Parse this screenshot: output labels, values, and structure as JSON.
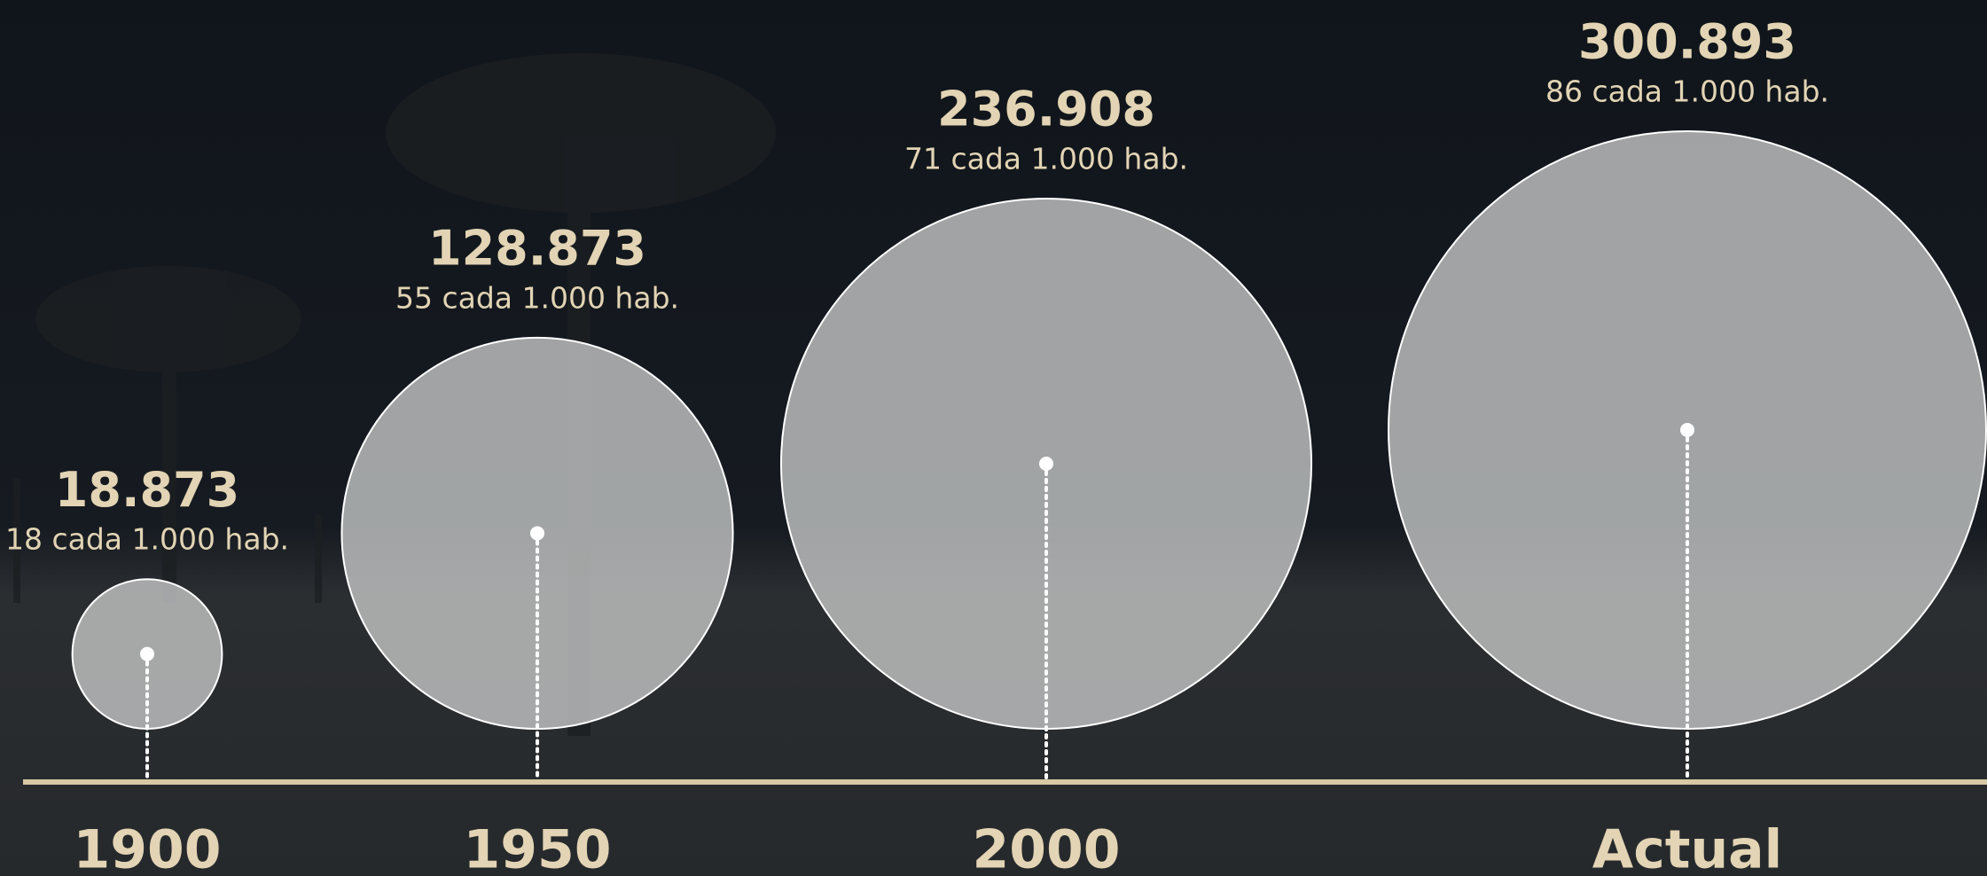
{
  "chart_data": {
    "type": "bubble",
    "categories": [
      "1900",
      "1950",
      "2000",
      "Actual"
    ],
    "values": [
      18873,
      128873,
      236908,
      300893
    ],
    "value_labels": [
      "18.873",
      "128.873",
      "236.908",
      "300.893"
    ],
    "rate_labels": [
      "18 cada 1.000 hab.",
      "55 cada 1.000 hab.",
      "71 cada 1.000 hab.",
      "86 cada 1.000 hab."
    ],
    "color": "#c9cacb",
    "axis_color": "#d8c8a4"
  }
}
